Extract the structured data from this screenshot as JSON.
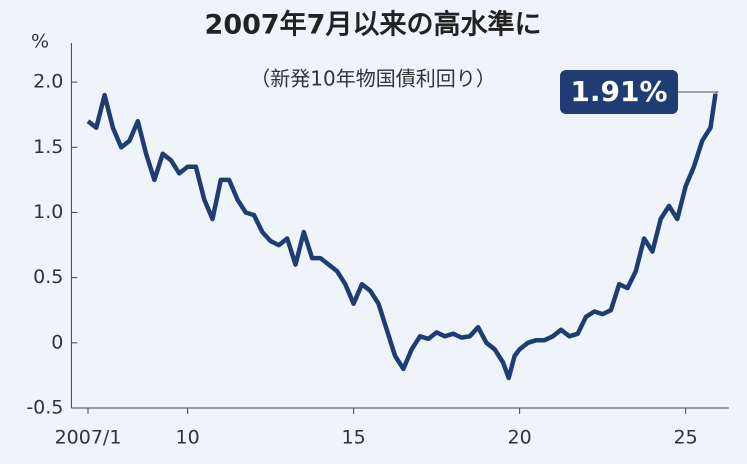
{
  "chart_data": {
    "type": "line",
    "title": "2007年7月以来の高水準に",
    "subtitle": "（新発10年物国債利回り）",
    "y_unit": "%",
    "color": "#1f3d72",
    "x": [
      2007.0,
      2007.25,
      2007.5,
      2007.75,
      2008.0,
      2008.25,
      2008.5,
      2008.75,
      2009.0,
      2009.25,
      2009.5,
      2009.75,
      2010.0,
      2010.25,
      2010.5,
      2010.75,
      2011.0,
      2011.25,
      2011.5,
      2011.75,
      2012.0,
      2012.25,
      2012.5,
      2012.75,
      2013.0,
      2013.25,
      2013.5,
      2013.75,
      2014.0,
      2014.25,
      2014.5,
      2014.75,
      2015.0,
      2015.25,
      2015.5,
      2015.75,
      2016.0,
      2016.25,
      2016.5,
      2016.75,
      2017.0,
      2017.25,
      2017.5,
      2017.75,
      2018.0,
      2018.25,
      2018.5,
      2018.75,
      2019.0,
      2019.25,
      2019.5,
      2019.67,
      2019.85,
      2020.0,
      2020.25,
      2020.5,
      2020.75,
      2021.0,
      2021.25,
      2021.5,
      2021.75,
      2022.0,
      2022.25,
      2022.5,
      2022.75,
      2023.0,
      2023.25,
      2023.5,
      2023.75,
      2024.0,
      2024.25,
      2024.5,
      2024.75,
      2025.0,
      2025.25,
      2025.5,
      2025.75,
      2025.9
    ],
    "values": [
      1.7,
      1.65,
      1.9,
      1.65,
      1.5,
      1.55,
      1.7,
      1.45,
      1.25,
      1.45,
      1.4,
      1.3,
      1.35,
      1.35,
      1.1,
      0.95,
      1.25,
      1.25,
      1.1,
      1.0,
      0.98,
      0.85,
      0.78,
      0.75,
      0.8,
      0.6,
      0.85,
      0.65,
      0.65,
      0.6,
      0.55,
      0.45,
      0.3,
      0.45,
      0.4,
      0.3,
      0.1,
      -0.1,
      -0.2,
      -0.05,
      0.05,
      0.03,
      0.08,
      0.05,
      0.07,
      0.04,
      0.05,
      0.12,
      0.0,
      -0.05,
      -0.15,
      -0.27,
      -0.1,
      -0.05,
      0.0,
      0.02,
      0.02,
      0.05,
      0.1,
      0.05,
      0.07,
      0.2,
      0.24,
      0.22,
      0.25,
      0.45,
      0.42,
      0.55,
      0.8,
      0.7,
      0.95,
      1.05,
      0.95,
      1.2,
      1.35,
      1.55,
      1.65,
      1.91
    ],
    "value_labels": [
      null,
      null,
      null,
      null,
      null,
      null,
      null,
      null,
      null,
      null,
      null,
      null,
      null,
      null,
      null,
      null,
      null,
      null,
      null,
      null,
      null,
      null,
      null,
      null,
      null,
      null,
      null,
      null,
      null,
      null,
      null,
      null,
      null,
      null,
      null,
      null,
      null,
      null,
      null,
      null,
      null,
      null,
      null,
      null,
      null,
      null,
      null,
      null,
      null,
      null,
      null,
      null,
      null,
      null,
      null,
      null,
      null,
      null,
      null,
      null,
      null,
      null,
      null,
      null,
      null,
      null,
      null,
      null,
      null,
      null,
      null,
      null,
      null,
      null,
      null,
      null,
      null,
      "1.91%"
    ],
    "xlim": [
      2006.5,
      2026.3
    ],
    "xticks": [
      {
        "value": 2007,
        "label": "2007/1"
      },
      {
        "value": 2010,
        "label": "10"
      },
      {
        "value": 2015,
        "label": "15"
      },
      {
        "value": 2020,
        "label": "20"
      },
      {
        "value": 2025,
        "label": "25"
      }
    ],
    "ylim": [
      -0.5,
      2.3
    ],
    "yticks": [
      -0.5,
      0,
      0.5,
      {
        "value": 1,
        "label": "1.0"
      },
      1.5,
      {
        "value": 2,
        "label": "2.0"
      }
    ]
  }
}
